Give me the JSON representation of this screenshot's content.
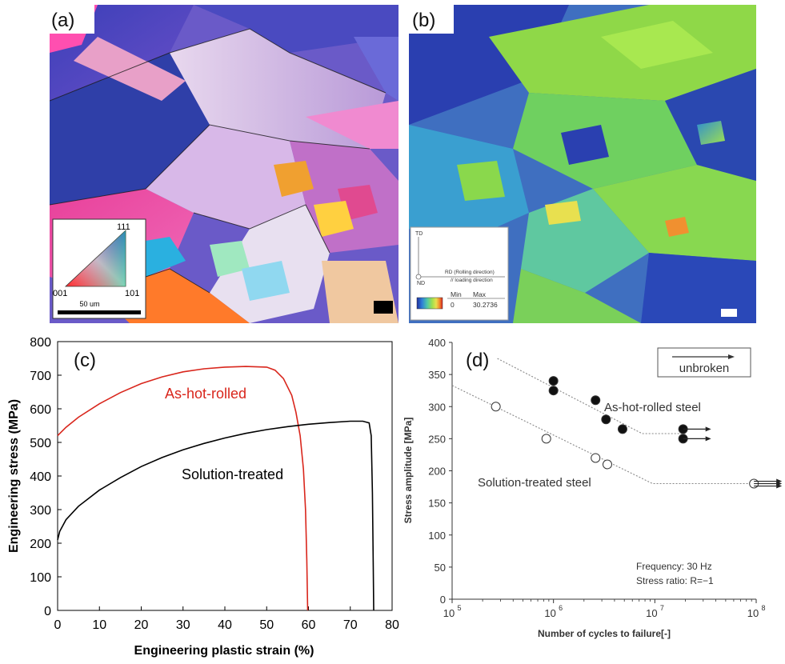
{
  "panel_a": {
    "label": "(a)",
    "ipf_key": {
      "corner_001": "001",
      "corner_101": "101",
      "corner_111": "111",
      "scalebar": "50 um"
    }
  },
  "panel_b": {
    "label": "(b)",
    "legend": {
      "td": "TD",
      "nd": "ND",
      "rd": "RD (Rolling direction)",
      "loading": "// loading direction",
      "min_label": "Min",
      "max_label": "Max",
      "min_value": "0",
      "max_value": "30.2736"
    },
    "colors": [
      "#1f2f9f",
      "#2f7fd8",
      "#4fc7a8",
      "#9fe04f",
      "#e8e04f",
      "#f08f2f",
      "#d8201f"
    ]
  },
  "chart_data": [
    {
      "type": "line",
      "panel_label": "(c)",
      "xlabel": "Engineering plastic strain (%)",
      "ylabel": "Engineering stress (MPa)",
      "xlim": [
        0,
        80
      ],
      "ylim": [
        0,
        800
      ],
      "xticks": [
        0,
        10,
        20,
        30,
        40,
        50,
        60,
        70,
        80
      ],
      "yticks": [
        0,
        100,
        200,
        300,
        400,
        500,
        600,
        700,
        800
      ],
      "series": [
        {
          "name": "As-hot-rolled",
          "color": "#d9261c",
          "x": [
            0,
            2,
            5,
            10,
            15,
            20,
            25,
            30,
            35,
            40,
            45,
            50,
            52,
            54,
            56,
            57,
            58,
            58.8,
            59.3,
            59.6,
            59.8
          ],
          "y": [
            520,
            545,
            575,
            615,
            648,
            675,
            695,
            710,
            719,
            724,
            726,
            724,
            715,
            690,
            640,
            590,
            520,
            420,
            300,
            150,
            0
          ]
        },
        {
          "name": "Solution-treated",
          "color": "#000000",
          "x": [
            0,
            0.5,
            2,
            5,
            10,
            15,
            20,
            25,
            30,
            35,
            40,
            45,
            50,
            55,
            60,
            65,
            70,
            73,
            74.5,
            75,
            75.3,
            75.5,
            75.6
          ],
          "y": [
            210,
            235,
            270,
            310,
            358,
            395,
            428,
            455,
            478,
            497,
            513,
            527,
            538,
            547,
            554,
            559,
            563,
            563,
            558,
            520,
            350,
            120,
            0
          ]
        }
      ]
    },
    {
      "type": "scatter",
      "panel_label": "(d)",
      "xlabel": "Number of cycles to failure[-]",
      "ylabel": "Stress amplitude [MPa]",
      "xscale": "log",
      "xlim": [
        100000,
        100000000
      ],
      "ylim": [
        0,
        400
      ],
      "yticks": [
        0,
        50,
        100,
        150,
        200,
        250,
        300,
        350,
        400
      ],
      "xtick_base": "10",
      "xtick_exponents": [
        "5",
        "6",
        "7",
        "8"
      ],
      "legend_box": "unbroken",
      "annotations": [
        "Frequency: 30 Hz",
        "Stress ratio: R=−1"
      ],
      "series": [
        {
          "name": "As-hot-rolled steel",
          "marker": "filled",
          "points": [
            [
              1000000,
              340
            ],
            [
              1000000,
              325
            ],
            [
              2600000,
              310
            ],
            [
              3300000,
              280
            ],
            [
              4800000,
              265
            ]
          ],
          "runouts": [
            [
              19000000,
              265
            ],
            [
              19000000,
              250
            ]
          ],
          "fit": [
            [
              280000,
              375
            ],
            [
              7500000,
              258
            ],
            [
              20000000,
              258
            ]
          ]
        },
        {
          "name": "Solution-treated steel",
          "marker": "open",
          "points": [
            [
              270000,
              300
            ],
            [
              850000,
              250
            ],
            [
              2600000,
              220
            ],
            [
              3400000,
              210
            ]
          ],
          "runouts": [
            [
              95000000,
              180
            ]
          ],
          "fit": [
            [
              100000,
              333
            ],
            [
              9500000,
              180
            ],
            [
              100000000,
              180
            ]
          ]
        }
      ]
    }
  ]
}
